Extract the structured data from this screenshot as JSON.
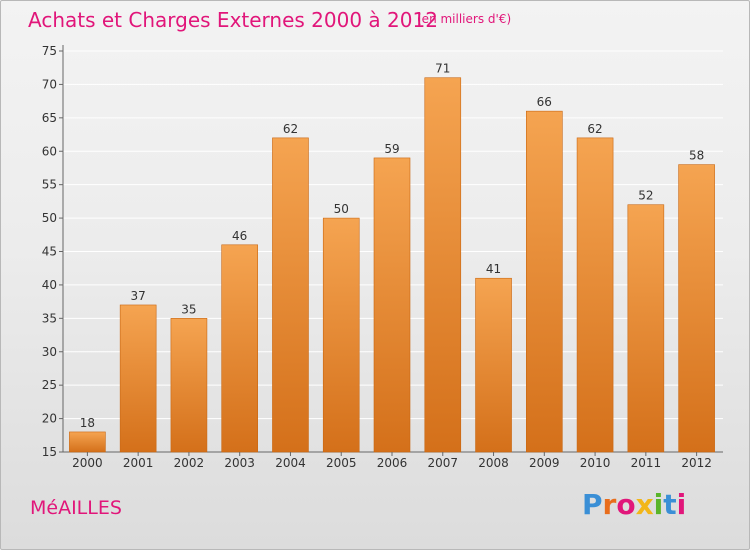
{
  "header": {
    "title": "Achats et Charges Externes 2000 à 2012",
    "subtitle": "(en milliers d'€)"
  },
  "footer": {
    "commune": "MéAILLES",
    "logo_letters": [
      "P",
      "r",
      "o",
      "x",
      "i",
      "t",
      "i"
    ],
    "logo_colors": [
      "#3a8fd6",
      "#e86d1c",
      "#e1167a",
      "#f2b619",
      "#5ab52a",
      "#3a8fd6",
      "#e1167a"
    ]
  },
  "colors": {
    "bar_top": "#f5a451",
    "bar_bottom": "#d4701a",
    "bar_edge": "#c96712",
    "grid": "#ffffff",
    "accent": "#e1167a"
  },
  "chart_data": {
    "type": "bar",
    "title": "Achats et Charges Externes 2000 à 2012",
    "unit": "(en milliers d'€)",
    "xlabel": "",
    "ylabel": "",
    "categories": [
      "2000",
      "2001",
      "2002",
      "2003",
      "2004",
      "2005",
      "2006",
      "2007",
      "2008",
      "2009",
      "2010",
      "2011",
      "2012"
    ],
    "values": [
      18,
      37,
      35,
      46,
      62,
      50,
      59,
      71,
      41,
      66,
      62,
      52,
      58
    ],
    "ylim": [
      15,
      75
    ],
    "yticks": [
      15,
      20,
      25,
      30,
      35,
      40,
      45,
      50,
      55,
      60,
      65,
      70,
      75
    ],
    "grid": true,
    "legend": "none"
  }
}
